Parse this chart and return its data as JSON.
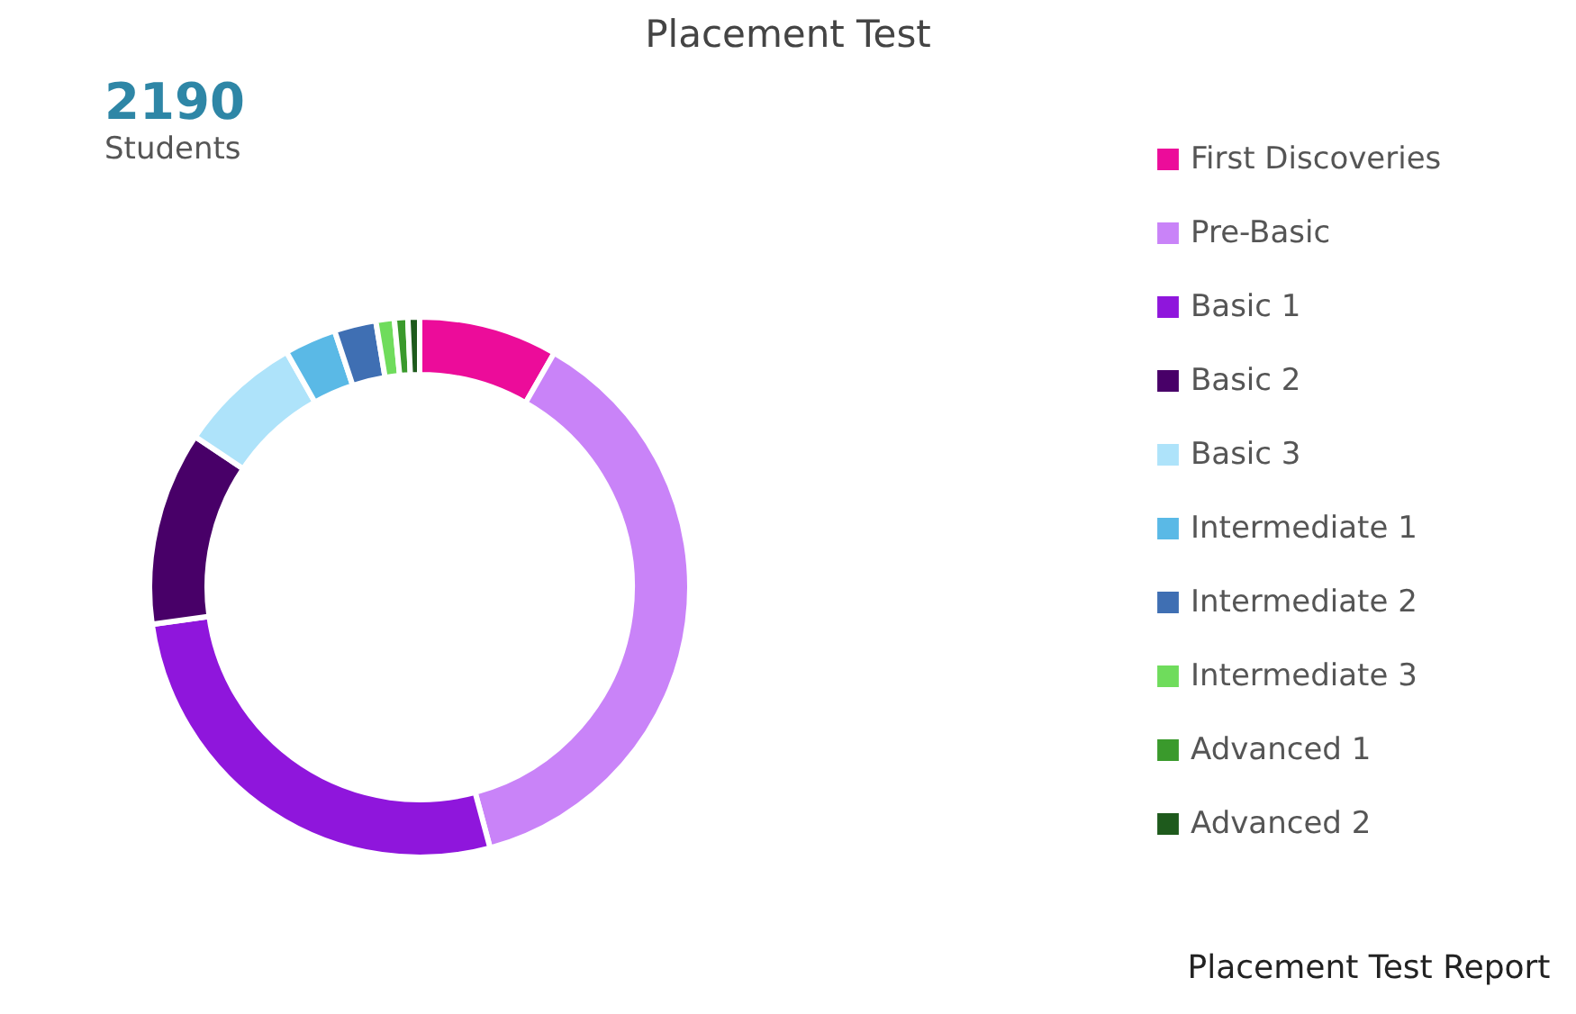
{
  "chart_data": {
    "type": "donut",
    "title": "Placement Test",
    "categories": [
      "First Discoveries",
      "Pre-Basic",
      "Basic 1",
      "Basic 2",
      "Basic 3",
      "Intermediate 1",
      "Intermediate 2",
      "Intermediate 3",
      "Advanced 1",
      "Advanced 2"
    ],
    "values": [
      8.3,
      37.5,
      27,
      11.6,
      7.4,
      3.1,
      2.5,
      1.1,
      0.8,
      0.7
    ],
    "colors": [
      "#ec0c9a",
      "#c983f8",
      "#8f16dc",
      "#480068",
      "#aee3fa",
      "#5ab9e6",
      "#3f6fb3",
      "#6fdc5c",
      "#3a9a2c",
      "#1e5a1c"
    ],
    "legend": "right",
    "annotations": [
      "2190",
      "Students",
      "Placement Test Report"
    ]
  }
}
